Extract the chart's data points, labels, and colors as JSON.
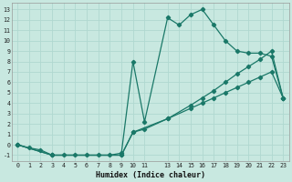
{
  "xlabel": "Humidex (Indice chaleur)",
  "background_color": "#c8e8e0",
  "grid_color": "#b0d8d0",
  "line_color": "#1a7868",
  "xlim": [
    -0.5,
    23.5
  ],
  "ylim": [
    -1.6,
    13.6
  ],
  "xticks": [
    0,
    1,
    2,
    3,
    4,
    5,
    6,
    7,
    8,
    9,
    10,
    11,
    13,
    14,
    15,
    16,
    17,
    18,
    19,
    20,
    21,
    22,
    23
  ],
  "yticks": [
    -1,
    0,
    1,
    2,
    3,
    4,
    5,
    6,
    7,
    8,
    9,
    10,
    11,
    12,
    13
  ],
  "line1_x": [
    0,
    1,
    2,
    3,
    4,
    5,
    6,
    7,
    8,
    9,
    10,
    11,
    13,
    14,
    15,
    16,
    17,
    18,
    19,
    20,
    21,
    22,
    23
  ],
  "line1_y": [
    0,
    -0.3,
    -0.5,
    -1,
    -1,
    -1,
    -1,
    -1,
    -1,
    -0.8,
    8,
    2.2,
    12.2,
    11.5,
    12.5,
    13,
    11.5,
    10,
    9,
    8.8,
    8.8,
    8.5,
    4.5
  ],
  "line2_x": [
    0,
    3,
    9,
    10,
    13,
    15,
    16,
    17,
    18,
    19,
    20,
    21,
    22,
    23
  ],
  "line2_y": [
    0,
    -1,
    -1,
    1.2,
    2.5,
    3.5,
    4,
    4.5,
    5,
    5.5,
    6,
    6.5,
    7,
    4.5
  ],
  "line3_x": [
    0,
    3,
    9,
    10,
    11,
    13,
    15,
    16,
    17,
    18,
    19,
    20,
    21,
    22,
    23
  ],
  "line3_y": [
    0,
    -1,
    -1,
    1.2,
    1.5,
    2.5,
    3.8,
    4.5,
    5.2,
    6,
    6.8,
    7.5,
    8.2,
    9,
    4.5
  ]
}
